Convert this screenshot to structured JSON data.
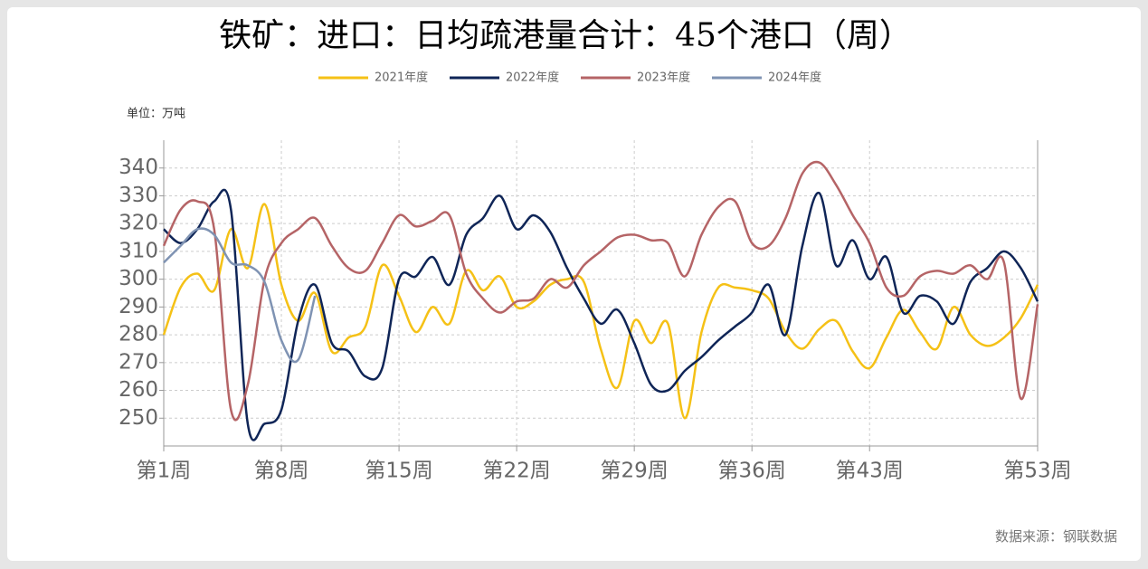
{
  "chart_data": {
    "type": "line",
    "title": "铁矿：进口：日均疏港量合计：45个港口（周）",
    "unit": "单位：万吨",
    "source": "数据来源：钢联数据",
    "x": [
      1,
      2,
      3,
      4,
      5,
      6,
      7,
      8,
      9,
      10,
      11,
      12,
      13,
      14,
      15,
      16,
      17,
      18,
      19,
      20,
      21,
      22,
      23,
      24,
      25,
      26,
      27,
      28,
      29,
      30,
      31,
      32,
      33,
      34,
      35,
      36,
      37,
      38,
      39,
      40,
      41,
      42,
      43,
      44,
      45,
      46,
      47,
      48,
      49,
      50,
      51,
      52,
      53
    ],
    "xlim": [
      1,
      53
    ],
    "xticks": [
      {
        "value": 1,
        "label": "第1周"
      },
      {
        "value": 8,
        "label": "第8周"
      },
      {
        "value": 15,
        "label": "第15周"
      },
      {
        "value": 22,
        "label": "第22周"
      },
      {
        "value": 29,
        "label": "第29周"
      },
      {
        "value": 36,
        "label": "第36周"
      },
      {
        "value": 43,
        "label": "第43周"
      },
      {
        "value": 53,
        "label": "第53周"
      }
    ],
    "ylim": [
      240,
      350
    ],
    "yticks": [
      250,
      260,
      270,
      280,
      290,
      300,
      310,
      320,
      330,
      340
    ],
    "grid": true,
    "legend": "top",
    "series": [
      {
        "name": "2021年度",
        "color": "#f5c116",
        "values": [
          280,
          297,
          302,
          296,
          318,
          304,
          327,
          298,
          285,
          295,
          274,
          279,
          283,
          305,
          294,
          281,
          290,
          284,
          303,
          296,
          301,
          290,
          292,
          298,
          300,
          299,
          275,
          261,
          285,
          277,
          284,
          250,
          281,
          297,
          297,
          296,
          293,
          281,
          275,
          282,
          285,
          274,
          268,
          279,
          289,
          281,
          275,
          290,
          280,
          276,
          279,
          286,
          298
        ]
      },
      {
        "name": "2022年度",
        "color": "#0f2557",
        "values": [
          318,
          313,
          318,
          328,
          325,
          248,
          248,
          253,
          285,
          298,
          277,
          274,
          265,
          268,
          300,
          301,
          308,
          298,
          316,
          322,
          330,
          318,
          323,
          317,
          304,
          293,
          284,
          289,
          277,
          262,
          260,
          267,
          272,
          278,
          283,
          288,
          298,
          280,
          312,
          331,
          305,
          314,
          300,
          308,
          288,
          294,
          292,
          284,
          299,
          304,
          310,
          304,
          292
        ]
      },
      {
        "name": "2023年度",
        "color": "#b56466",
        "values": [
          312,
          325,
          328,
          318,
          253,
          262,
          300,
          313,
          318,
          322,
          312,
          304,
          303,
          313,
          323,
          319,
          321,
          323,
          302,
          293,
          288,
          292,
          293,
          300,
          297,
          305,
          310,
          315,
          316,
          314,
          313,
          301,
          316,
          326,
          328,
          313,
          312,
          322,
          338,
          342,
          334,
          323,
          313,
          297,
          294,
          301,
          303,
          302,
          305,
          300,
          306,
          257,
          291
        ]
      },
      {
        "name": "2024年度",
        "color": "#7f93b3",
        "values": [
          306,
          312,
          318,
          316,
          306,
          305,
          299,
          278,
          271,
          294,
          null,
          null,
          null,
          null,
          null,
          null,
          null,
          null,
          null,
          null,
          null,
          null,
          null,
          null,
          null,
          null,
          null,
          null,
          null,
          null,
          null,
          null,
          null,
          null,
          null,
          null,
          null,
          null,
          null,
          null,
          null,
          null,
          null,
          null,
          null,
          null,
          null,
          null,
          null,
          null,
          null,
          null,
          null
        ]
      }
    ]
  }
}
